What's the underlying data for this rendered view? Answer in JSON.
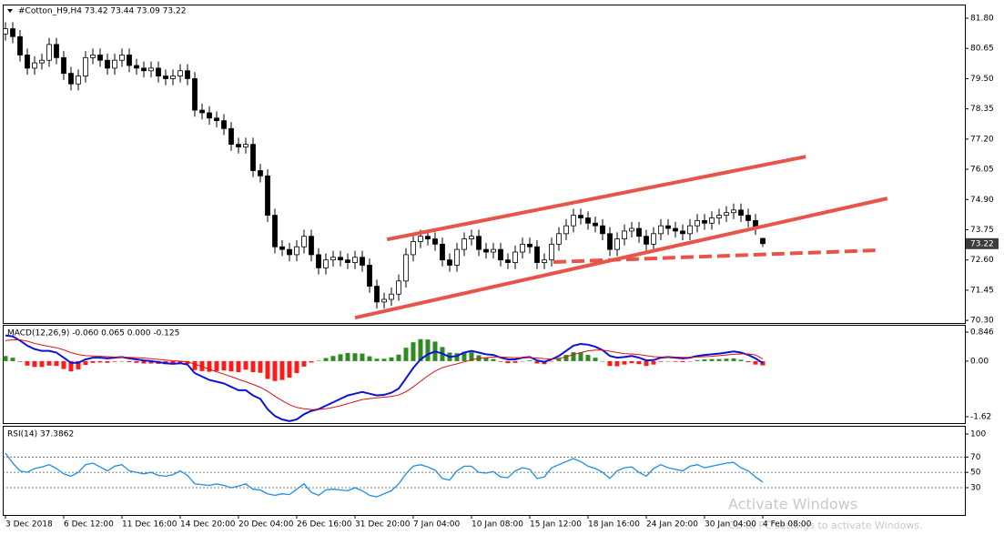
{
  "chart_data": [
    {
      "type": "candlestick",
      "title": "#Cotton_H9,H4  73.42 73.44 73.09 73.22",
      "up_color": "#ffffff",
      "down_color": "#000000",
      "wick_color": "#000000",
      "last_price_color": "#3c3c3c",
      "xlim": [
        -0.375,
        131.75
      ],
      "ylim": [
        70.2,
        82.32
      ],
      "yticks": [
        {
          "value": 81.8,
          "label": "81.80"
        },
        80.65,
        {
          "value": 79.5,
          "label": "79.50"
        },
        78.35,
        {
          "value": 77.2,
          "label": "77.20"
        },
        76.05,
        {
          "value": 74.9,
          "label": "74.90"
        },
        73.75,
        {
          "value": 72.6,
          "label": "72.60"
        },
        71.45,
        {
          "value": 70.3,
          "label": "70.30"
        }
      ],
      "xticks": [
        {
          "value": 0,
          "label": "3 Dec 2018"
        },
        {
          "value": 8,
          "label": "6 Dec 12:00"
        },
        {
          "value": 16,
          "label": "11 Dec 16:00"
        },
        {
          "value": 24,
          "label": "14 Dec 20:00"
        },
        {
          "value": 32,
          "label": "20 Dec 04:00"
        },
        {
          "value": 40,
          "label": "26 Dec 16:00"
        },
        {
          "value": 48,
          "label": "31 Dec 20:00"
        },
        {
          "value": 56,
          "label": "7 Jan 04:00"
        },
        {
          "value": 64,
          "label": "10 Jan 08:00"
        },
        {
          "value": 72,
          "label": "15 Jan 12:00"
        },
        {
          "value": 80,
          "label": "18 Jan 16:00"
        },
        {
          "value": 88,
          "label": "24 Jan 20:00"
        },
        {
          "value": 96,
          "label": "30 Jan 04:00"
        },
        {
          "value": 104,
          "label": "4 Feb 08:00"
        }
      ],
      "open": [
        81.2,
        81.4,
        81.1,
        80.4,
        79.9,
        80.1,
        80.2,
        80.8,
        80.3,
        79.7,
        79.3,
        79.6,
        80.3,
        80.4,
        80.2,
        79.9,
        80.2,
        80.4,
        80,
        79.9,
        79.8,
        79.9,
        79.6,
        79.5,
        79.6,
        79.8,
        79.5,
        78.3,
        78.2,
        78,
        77.9,
        77.6,
        77,
        76.9,
        77,
        76,
        75.8,
        74.3,
        73.1,
        73,
        72.8,
        73.1,
        73.5,
        72.8,
        72.3,
        72.6,
        72.7,
        72.6,
        72.5,
        72.7,
        72.4,
        71.6,
        71,
        71.1,
        71.3,
        71.8,
        72.8,
        73.3,
        73.5,
        73.4,
        73.2,
        72.6,
        72.4,
        73,
        73.4,
        73.5,
        73,
        72.9,
        73,
        72.6,
        72.5,
        72.9,
        73.2,
        73.1,
        72.5,
        72.6,
        73.2,
        73.6,
        73.9,
        74.3,
        74.2,
        74,
        73.9,
        73.6,
        73,
        73.4,
        73.7,
        73.8,
        73.5,
        73.2,
        73.6,
        73.9,
        73.8,
        73.7,
        73.6,
        73.9,
        74.1,
        74,
        74.2,
        74.3,
        74.4,
        74.5,
        74.3,
        74.1,
        73.42
      ],
      "high": [
        81.65,
        81.65,
        81.35,
        80.65,
        80.35,
        80.45,
        81.05,
        81.05,
        80.55,
        79.95,
        79.85,
        80.55,
        80.65,
        80.65,
        80.45,
        80.45,
        80.65,
        80.65,
        80.25,
        80.15,
        80.15,
        80.15,
        79.85,
        79.85,
        80.05,
        80.05,
        79.75,
        78.55,
        78.45,
        78.25,
        78.15,
        77.85,
        77.25,
        77.25,
        77.25,
        76.25,
        76.05,
        74.55,
        73.35,
        73.25,
        73.35,
        73.75,
        73.75,
        73.05,
        72.85,
        72.95,
        72.95,
        72.85,
        72.95,
        72.95,
        72.65,
        71.85,
        71.35,
        71.55,
        72.05,
        73.05,
        73.55,
        73.75,
        73.75,
        73.65,
        73.45,
        72.85,
        73.25,
        73.65,
        73.75,
        73.75,
        73.25,
        73.25,
        73.25,
        72.85,
        73.15,
        73.45,
        73.45,
        73.35,
        72.85,
        73.45,
        73.85,
        74.15,
        74.55,
        74.55,
        74.45,
        74.25,
        74.15,
        73.85,
        73.65,
        73.95,
        74.05,
        74.05,
        73.75,
        73.85,
        74.15,
        74.15,
        74.05,
        73.95,
        74.15,
        74.35,
        74.35,
        74.45,
        74.55,
        74.65,
        74.75,
        74.75,
        74.55,
        74.35,
        73.44
      ],
      "low": [
        80.95,
        80.85,
        80.15,
        79.65,
        79.65,
        79.85,
        79.95,
        80.05,
        79.45,
        79.05,
        79.05,
        79.35,
        80.05,
        79.95,
        79.65,
        79.65,
        79.95,
        79.75,
        79.65,
        79.55,
        79.55,
        79.35,
        79.25,
        79.25,
        79.35,
        79.25,
        78.05,
        77.95,
        77.75,
        77.65,
        77.35,
        76.75,
        76.65,
        76.65,
        75.75,
        75.55,
        74.05,
        72.85,
        72.75,
        72.55,
        72.55,
        72.85,
        72.55,
        72.05,
        72.05,
        72.35,
        72.35,
        72.25,
        72.25,
        72.15,
        71.35,
        70.75,
        70.75,
        70.85,
        71.05,
        71.55,
        72.55,
        73.05,
        73.15,
        72.95,
        72.35,
        72.15,
        72.15,
        72.75,
        73.15,
        72.75,
        72.65,
        72.65,
        72.35,
        72.25,
        72.25,
        72.65,
        72.85,
        72.25,
        72.25,
        72.35,
        72.95,
        73.35,
        73.65,
        73.95,
        73.75,
        73.65,
        73.35,
        72.75,
        72.75,
        73.15,
        73.45,
        73.25,
        72.95,
        72.95,
        73.35,
        73.55,
        73.45,
        73.35,
        73.35,
        73.65,
        73.75,
        73.75,
        73.95,
        74.05,
        74.15,
        74.05,
        73.85,
        73.55,
        73.09
      ],
      "close": [
        81.4,
        81.1,
        80.4,
        79.9,
        80.1,
        80.2,
        80.8,
        80.3,
        79.7,
        79.3,
        79.6,
        80.3,
        80.4,
        80.2,
        79.9,
        80.2,
        80.4,
        80,
        79.9,
        79.8,
        79.9,
        79.6,
        79.5,
        79.6,
        79.8,
        79.5,
        78.3,
        78.2,
        78,
        77.9,
        77.6,
        77,
        76.9,
        77,
        76,
        75.8,
        74.3,
        73.1,
        73,
        72.8,
        73.1,
        73.5,
        72.8,
        72.3,
        72.6,
        72.7,
        72.6,
        72.5,
        72.7,
        72.4,
        71.6,
        71,
        71.1,
        71.3,
        71.8,
        72.8,
        73.3,
        73.5,
        73.4,
        73.2,
        72.6,
        72.4,
        73,
        73.4,
        73.5,
        73,
        72.9,
        73,
        72.6,
        72.5,
        72.9,
        73.2,
        73.1,
        72.5,
        72.6,
        73.2,
        73.6,
        73.9,
        74.3,
        74.2,
        74,
        73.9,
        73.6,
        73,
        73.4,
        73.7,
        73.8,
        73.5,
        73.2,
        73.6,
        73.9,
        73.8,
        73.7,
        73.6,
        73.9,
        74.1,
        74,
        74.2,
        74.3,
        74.4,
        74.5,
        74.3,
        74.1,
        73.8,
        {
          "value": 73.22,
          "label": "73.22"
        }
      ],
      "trendlines": [
        {
          "x": [
            52.4,
            109.9
          ],
          "y": [
            73.38,
            76.53
          ],
          "color": "#e8534a",
          "dashed": false
        },
        {
          "x": [
            48,
            121.1
          ],
          "y": [
            70.4,
            74.94
          ],
          "color": "#e8534a",
          "dashed": false
        },
        {
          "x": [
            75.25,
            119.9
          ],
          "y": [
            72.52,
            72.97
          ],
          "color": "#e8534a",
          "dashed": true
        }
      ]
    },
    {
      "type": "macd",
      "title": "MACD(12,26,9) -0.060 0.065 0.000 -0.125",
      "ylim": [
        -1.806,
        1.058
      ],
      "yticks": [
        0.846,
        {
          "value": 0,
          "label": "0.00"
        },
        -1.62
      ],
      "histogram": {
        "up_color": "#2e8b22",
        "down_color": "#ff1a1a",
        "values": [
          0.15,
          0.1,
          -0.02,
          -0.13,
          -0.17,
          -0.17,
          -0.13,
          -0.14,
          -0.23,
          -0.3,
          -0.24,
          -0.11,
          -0.05,
          -0.04,
          -0.05,
          -0.02,
          0,
          -0.03,
          -0.05,
          -0.07,
          -0.07,
          -0.08,
          -0.09,
          -0.09,
          -0.06,
          -0.08,
          -0.26,
          -0.29,
          -0.31,
          -0.29,
          -0.27,
          -0.3,
          -0.32,
          -0.25,
          -0.32,
          -0.34,
          -0.52,
          -0.58,
          -0.55,
          -0.48,
          -0.35,
          -0.16,
          -0.04,
          0.01,
          0.09,
          0.15,
          0.2,
          0.24,
          0.23,
          0.22,
          0.14,
          0.07,
          0.07,
          0.11,
          0.19,
          0.39,
          0.55,
          0.64,
          0.63,
          0.57,
          0.41,
          0.25,
          0.23,
          0.27,
          0.26,
          0.17,
          0.1,
          0.06,
          -0.02,
          -0.06,
          -0.05,
          0,
          0.02,
          -0.07,
          -0.09,
          -0.01,
          0.07,
          0.18,
          0.26,
          0.25,
          0.18,
          0.1,
          0,
          -0.14,
          -0.15,
          -0.1,
          -0.06,
          -0.09,
          -0.14,
          -0.1,
          -0.02,
          0,
          -0.02,
          -0.03,
          -0.01,
          0.03,
          0.05,
          0.06,
          0.06,
          0.07,
          0.08,
          0.04,
          -0.03,
          -0.1,
          -0.125
        ]
      },
      "lines": [
        {
          "color": "#0a14d8",
          "width": 2,
          "values": [
            0.75,
            0.72,
            0.6,
            0.45,
            0.35,
            0.3,
            0.3,
            0.25,
            0.1,
            -0.05,
            -0.05,
            0.05,
            0.1,
            0.1,
            0.08,
            0.1,
            0.12,
            0.08,
            0.05,
            0.02,
            0,
            -0.03,
            -0.06,
            -0.08,
            -0.06,
            -0.1,
            -0.35,
            -0.45,
            -0.55,
            -0.6,
            -0.65,
            -0.75,
            -0.85,
            -0.85,
            -1,
            -1.1,
            -1.4,
            -1.6,
            -1.7,
            -1.75,
            -1.7,
            -1.55,
            -1.45,
            -1.4,
            -1.3,
            -1.2,
            -1.1,
            -1,
            -0.95,
            -0.9,
            -0.95,
            -1,
            -0.98,
            -0.92,
            -0.8,
            -0.5,
            -0.2,
            0.05,
            0.2,
            0.28,
            0.22,
            0.12,
            0.15,
            0.25,
            0.3,
            0.25,
            0.2,
            0.18,
            0.1,
            0.05,
            0.05,
            0.1,
            0.12,
            0.02,
            -0.02,
            0.05,
            0.15,
            0.3,
            0.45,
            0.5,
            0.48,
            0.42,
            0.32,
            0.15,
            0.1,
            0.12,
            0.15,
            0.1,
            0.02,
            0.03,
            0.1,
            0.12,
            0.1,
            0.08,
            0.1,
            0.15,
            0.18,
            0.2,
            0.22,
            0.25,
            0.28,
            0.25,
            0.18,
            0.08,
            -0.06
          ]
        },
        {
          "color": "#e01010",
          "width": 1,
          "values": [
            0.6,
            0.62,
            0.62,
            0.58,
            0.52,
            0.47,
            0.43,
            0.39,
            0.33,
            0.25,
            0.19,
            0.16,
            0.15,
            0.14,
            0.13,
            0.12,
            0.12,
            0.11,
            0.1,
            0.09,
            0.07,
            0.05,
            0.03,
            0.01,
            0,
            -0.02,
            -0.09,
            -0.16,
            -0.24,
            -0.31,
            -0.38,
            -0.45,
            -0.53,
            -0.6,
            -0.68,
            -0.76,
            -0.88,
            -1.02,
            -1.15,
            -1.27,
            -1.35,
            -1.39,
            -1.41,
            -1.41,
            -1.39,
            -1.35,
            -1.3,
            -1.24,
            -1.18,
            -1.12,
            -1.09,
            -1.07,
            -1.05,
            -1.03,
            -0.99,
            -0.89,
            -0.75,
            -0.59,
            -0.43,
            -0.29,
            -0.19,
            -0.13,
            -0.08,
            -0.02,
            0.04,
            0.08,
            0.1,
            0.12,
            0.12,
            0.11,
            0.1,
            0.1,
            0.1,
            0.09,
            0.07,
            0.06,
            0.08,
            0.12,
            0.19,
            0.25,
            0.3,
            0.32,
            0.32,
            0.29,
            0.25,
            0.22,
            0.21,
            0.19,
            0.16,
            0.13,
            0.12,
            0.12,
            0.12,
            0.11,
            0.11,
            0.12,
            0.13,
            0.14,
            0.16,
            0.18,
            0.2,
            0.21,
            0.21,
            0.18,
            0.065
          ]
        }
      ]
    },
    {
      "type": "line",
      "title": "RSI(14) 37.3862",
      "color": "#1e8fe6",
      "ylim": [
        -5.6,
        109.5
      ],
      "yticks": [
        100,
        70,
        50,
        30
      ],
      "levels": [
        70,
        50,
        30
      ],
      "values": [
        75,
        62,
        52,
        50,
        55,
        57,
        60,
        55,
        48,
        45,
        50,
        60,
        62,
        57,
        52,
        58,
        60,
        52,
        50,
        48,
        50,
        46,
        45,
        47,
        52,
        46,
        35,
        34,
        33,
        35,
        33,
        30,
        32,
        35,
        28,
        27,
        22,
        20,
        22,
        21,
        28,
        35,
        24,
        20,
        27,
        28,
        27,
        26,
        30,
        26,
        20,
        18,
        22,
        26,
        35,
        48,
        58,
        60,
        57,
        53,
        42,
        40,
        52,
        58,
        58,
        50,
        49,
        51,
        44,
        43,
        52,
        56,
        54,
        42,
        44,
        56,
        60,
        64,
        68,
        64,
        58,
        55,
        50,
        42,
        52,
        56,
        57,
        50,
        45,
        55,
        60,
        56,
        54,
        52,
        58,
        60,
        56,
        58,
        60,
        62,
        63,
        56,
        52,
        44,
        37.3862
      ]
    }
  ],
  "watermark": {
    "title": "Activate Windows",
    "text": "Go to PC settings to activate Windows."
  }
}
